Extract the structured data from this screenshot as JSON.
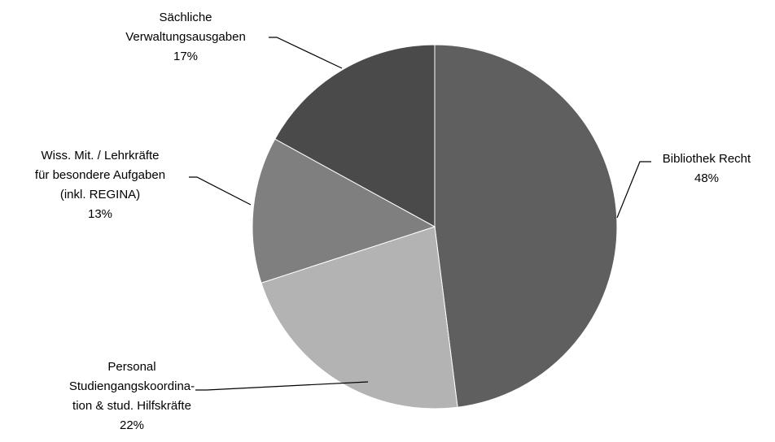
{
  "chart_data": {
    "type": "pie",
    "title": "",
    "start_angle_deg": 0,
    "direction": "clockwise",
    "slices": [
      {
        "label_lines": [
          "Bibliothek Recht"
        ],
        "pct_label": "48%",
        "value": 48,
        "color": "#5f5f5f"
      },
      {
        "label_lines": [
          "Personal",
          "Studiengangskoordina-",
          "tion & stud. Hilfskräfte"
        ],
        "pct_label": "22%",
        "value": 22,
        "color": "#b3b3b3"
      },
      {
        "label_lines": [
          "Wiss. Mit. / Lehrkräfte",
          "für besondere Aufgaben",
          "(inkl. REGINA)"
        ],
        "pct_label": "13%",
        "value": 13,
        "color": "#7f7f7f"
      },
      {
        "label_lines": [
          "Sächliche",
          "Verwaltungsausgaben"
        ],
        "pct_label": "17%",
        "value": 17,
        "color": "#4a4a4a"
      }
    ]
  }
}
